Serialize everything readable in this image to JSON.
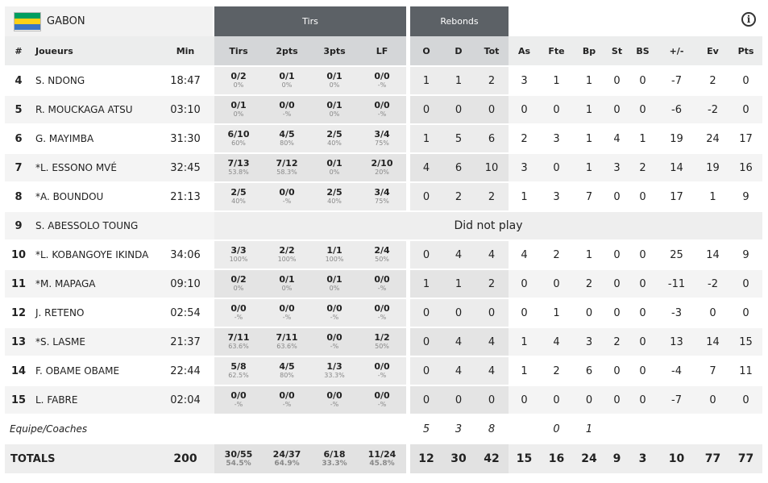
{
  "team": {
    "name": "GABON",
    "flag_colors": [
      "#009e60",
      "#fcd116",
      "#3a75c4"
    ]
  },
  "groups": {
    "tirs": "Tirs",
    "rebonds": "Rebonds"
  },
  "info_icon": "i",
  "headers": {
    "num": "#",
    "player": "Joueurs",
    "min": "Min",
    "tirs": "Tirs",
    "p2": "2pts",
    "p3": "3pts",
    "lf": "LF",
    "o": "O",
    "d": "D",
    "tot": "Tot",
    "as": "As",
    "fte": "Fte",
    "bp": "Bp",
    "st": "St",
    "bs": "BS",
    "pm": "+/-",
    "ev": "Ev",
    "pts": "Pts"
  },
  "rows": [
    {
      "num": "4",
      "player": "S. NDONG",
      "min": "18:47",
      "tirs": "0/2",
      "tirs_pct": "0%",
      "p2": "0/1",
      "p2_pct": "0%",
      "p3": "0/1",
      "p3_pct": "0%",
      "lf": "0/0",
      "lf_pct": "-%",
      "o": "1",
      "d": "1",
      "tot": "2",
      "as": "3",
      "fte": "1",
      "bp": "1",
      "st": "0",
      "bs": "0",
      "pm": "-7",
      "ev": "2",
      "pts": "0"
    },
    {
      "num": "5",
      "player": "R. MOUCKAGA ATSU",
      "min": "03:10",
      "tirs": "0/1",
      "tirs_pct": "0%",
      "p2": "0/0",
      "p2_pct": "-%",
      "p3": "0/1",
      "p3_pct": "0%",
      "lf": "0/0",
      "lf_pct": "-%",
      "o": "0",
      "d": "0",
      "tot": "0",
      "as": "0",
      "fte": "0",
      "bp": "1",
      "st": "0",
      "bs": "0",
      "pm": "-6",
      "ev": "-2",
      "pts": "0"
    },
    {
      "num": "6",
      "player": "G. MAYIMBA",
      "min": "31:30",
      "tirs": "6/10",
      "tirs_pct": "60%",
      "p2": "4/5",
      "p2_pct": "80%",
      "p3": "2/5",
      "p3_pct": "40%",
      "lf": "3/4",
      "lf_pct": "75%",
      "o": "1",
      "d": "5",
      "tot": "6",
      "as": "2",
      "fte": "3",
      "bp": "1",
      "st": "4",
      "bs": "1",
      "pm": "19",
      "ev": "24",
      "pts": "17"
    },
    {
      "num": "7",
      "player": "*L. ESSONO MVÉ",
      "min": "32:45",
      "tirs": "7/13",
      "tirs_pct": "53.8%",
      "p2": "7/12",
      "p2_pct": "58.3%",
      "p3": "0/1",
      "p3_pct": "0%",
      "lf": "2/10",
      "lf_pct": "20%",
      "o": "4",
      "d": "6",
      "tot": "10",
      "as": "3",
      "fte": "0",
      "bp": "1",
      "st": "3",
      "bs": "2",
      "pm": "14",
      "ev": "19",
      "pts": "16"
    },
    {
      "num": "8",
      "player": "*A. BOUNDOU",
      "min": "21:13",
      "tirs": "2/5",
      "tirs_pct": "40%",
      "p2": "0/0",
      "p2_pct": "-%",
      "p3": "2/5",
      "p3_pct": "40%",
      "lf": "3/4",
      "lf_pct": "75%",
      "o": "0",
      "d": "2",
      "tot": "2",
      "as": "1",
      "fte": "3",
      "bp": "7",
      "st": "0",
      "bs": "0",
      "pm": "17",
      "ev": "1",
      "pts": "9"
    },
    {
      "num": "9",
      "player": "S. ABESSOLO TOUNG",
      "dnp": "Did not play"
    },
    {
      "num": "10",
      "player": "*L. KOBANGOYE IKINDA",
      "min": "34:06",
      "tirs": "3/3",
      "tirs_pct": "100%",
      "p2": "2/2",
      "p2_pct": "100%",
      "p3": "1/1",
      "p3_pct": "100%",
      "lf": "2/4",
      "lf_pct": "50%",
      "o": "0",
      "d": "4",
      "tot": "4",
      "as": "4",
      "fte": "2",
      "bp": "1",
      "st": "0",
      "bs": "0",
      "pm": "25",
      "ev": "14",
      "pts": "9"
    },
    {
      "num": "11",
      "player": "*M. MAPAGA",
      "min": "09:10",
      "tirs": "0/2",
      "tirs_pct": "0%",
      "p2": "0/1",
      "p2_pct": "0%",
      "p3": "0/1",
      "p3_pct": "0%",
      "lf": "0/0",
      "lf_pct": "-%",
      "o": "1",
      "d": "1",
      "tot": "2",
      "as": "0",
      "fte": "0",
      "bp": "2",
      "st": "0",
      "bs": "0",
      "pm": "-11",
      "ev": "-2",
      "pts": "0"
    },
    {
      "num": "12",
      "player": "J. RETENO",
      "min": "02:54",
      "tirs": "0/0",
      "tirs_pct": "-%",
      "p2": "0/0",
      "p2_pct": "-%",
      "p3": "0/0",
      "p3_pct": "-%",
      "lf": "0/0",
      "lf_pct": "-%",
      "o": "0",
      "d": "0",
      "tot": "0",
      "as": "0",
      "fte": "1",
      "bp": "0",
      "st": "0",
      "bs": "0",
      "pm": "-3",
      "ev": "0",
      "pts": "0"
    },
    {
      "num": "13",
      "player": "*S. LASME",
      "min": "21:37",
      "tirs": "7/11",
      "tirs_pct": "63.6%",
      "p2": "7/11",
      "p2_pct": "63.6%",
      "p3": "0/0",
      "p3_pct": "-%",
      "lf": "1/2",
      "lf_pct": "50%",
      "o": "0",
      "d": "4",
      "tot": "4",
      "as": "1",
      "fte": "4",
      "bp": "3",
      "st": "2",
      "bs": "0",
      "pm": "13",
      "ev": "14",
      "pts": "15"
    },
    {
      "num": "14",
      "player": "F. OBAME OBAME",
      "min": "22:44",
      "tirs": "5/8",
      "tirs_pct": "62.5%",
      "p2": "4/5",
      "p2_pct": "80%",
      "p3": "1/3",
      "p3_pct": "33.3%",
      "lf": "0/0",
      "lf_pct": "-%",
      "o": "0",
      "d": "4",
      "tot": "4",
      "as": "1",
      "fte": "2",
      "bp": "6",
      "st": "0",
      "bs": "0",
      "pm": "-4",
      "ev": "7",
      "pts": "11"
    },
    {
      "num": "15",
      "player": "L. FABRE",
      "min": "02:04",
      "tirs": "0/0",
      "tirs_pct": "-%",
      "p2": "0/0",
      "p2_pct": "-%",
      "p3": "0/0",
      "p3_pct": "-%",
      "lf": "0/0",
      "lf_pct": "-%",
      "o": "0",
      "d": "0",
      "tot": "0",
      "as": "0",
      "fte": "0",
      "bp": "0",
      "st": "0",
      "bs": "0",
      "pm": "-7",
      "ev": "0",
      "pts": "0"
    }
  ],
  "coach_row": {
    "label": "Equipe/Coaches",
    "o": "5",
    "d": "3",
    "tot": "8",
    "fte": "0",
    "bp": "1"
  },
  "totals": {
    "label": "TOTALS",
    "min": "200",
    "tirs": "30/55",
    "tirs_pct": "54.5%",
    "p2": "24/37",
    "p2_pct": "64.9%",
    "p3": "6/18",
    "p3_pct": "33.3%",
    "lf": "11/24",
    "lf_pct": "45.8%",
    "o": "12",
    "d": "30",
    "tot": "42",
    "as": "15",
    "fte": "16",
    "bp": "24",
    "st": "9",
    "bs": "3",
    "pm": "10",
    "ev": "77",
    "pts": "77"
  }
}
